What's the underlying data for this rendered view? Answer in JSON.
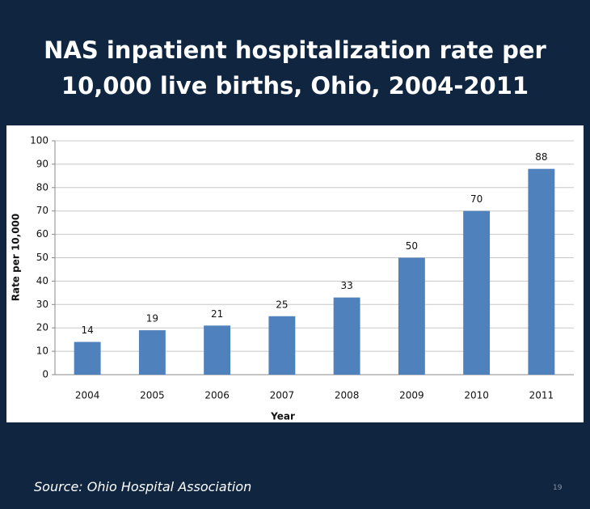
{
  "chart_data": {
    "type": "bar",
    "title": "NAS inpatient hospitalization rate per 10,000 live births, Ohio, 2004-2011",
    "categories": [
      "2004",
      "2005",
      "2006",
      "2007",
      "2008",
      "2009",
      "2010",
      "2011"
    ],
    "values": [
      14,
      19,
      21,
      25,
      33,
      50,
      70,
      88
    ],
    "color": "#4f81bd",
    "x_label": "Year",
    "y_label": "Rate per 10,000",
    "ylim": [
      0,
      100
    ],
    "yticks": [
      0,
      10,
      20,
      30,
      40,
      50,
      60,
      70,
      80,
      90,
      100
    ],
    "grid": true
  },
  "footer": {
    "source": "Source:  Ohio Hospital Association",
    "page_number": "19"
  }
}
